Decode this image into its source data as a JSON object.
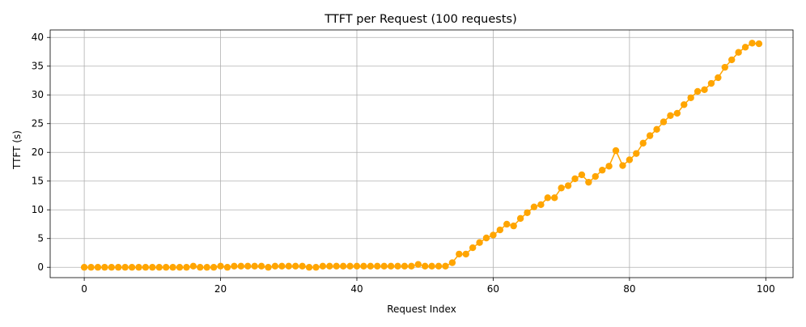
{
  "chart_data": {
    "type": "line",
    "title": "TTFT per Request (100 requests)",
    "xlabel": "Request Index",
    "ylabel": "TTFT (s)",
    "xlim": [
      -5,
      104
    ],
    "ylim": [
      -1.8,
      41.3
    ],
    "xticks": [
      0,
      20,
      40,
      60,
      80,
      100
    ],
    "yticks": [
      0,
      5,
      10,
      15,
      20,
      25,
      30,
      35,
      40
    ],
    "grid": true,
    "marker": "circle",
    "color": "#FFA500",
    "series": [
      {
        "x": [
          0,
          1,
          2,
          3,
          4,
          5,
          6,
          7,
          8,
          9,
          10,
          11,
          12,
          13,
          14,
          15,
          16,
          17,
          18,
          19,
          20,
          21,
          22,
          23,
          24,
          25,
          26,
          27,
          28,
          29,
          30,
          31,
          32,
          33,
          34,
          35,
          36,
          37,
          38,
          39,
          40,
          41,
          42,
          43,
          44,
          45,
          46,
          47,
          48,
          49,
          50,
          51,
          52,
          53,
          54,
          55,
          56,
          57,
          58,
          59,
          60,
          61,
          62,
          63,
          64,
          65,
          66,
          67,
          68,
          69,
          70,
          71,
          72,
          73,
          74,
          75,
          76,
          77,
          78,
          79,
          80,
          81,
          82,
          83,
          84,
          85,
          86,
          87,
          88,
          89,
          90,
          91,
          92,
          93,
          94,
          95,
          96,
          97,
          98,
          99
        ],
        "values": [
          0.0,
          0.0,
          0.0,
          0.0,
          0.0,
          0.0,
          0.0,
          0.0,
          0.0,
          0.0,
          0.0,
          0.0,
          0.0,
          0.0,
          0.0,
          0.0,
          0.2,
          0.0,
          0.0,
          0.0,
          0.2,
          0.0,
          0.2,
          0.2,
          0.2,
          0.2,
          0.2,
          0.0,
          0.2,
          0.2,
          0.2,
          0.2,
          0.2,
          0.0,
          0.0,
          0.2,
          0.2,
          0.2,
          0.2,
          0.2,
          0.2,
          0.2,
          0.2,
          0.2,
          0.2,
          0.2,
          0.2,
          0.2,
          0.2,
          0.5,
          0.2,
          0.2,
          0.2,
          0.2,
          0.8,
          2.3,
          2.3,
          3.4,
          4.3,
          5.1,
          5.6,
          6.5,
          7.5,
          7.2,
          8.5,
          9.5,
          10.5,
          10.9,
          12.1,
          12.1,
          13.8,
          14.2,
          15.4,
          16.1,
          14.8,
          15.8,
          16.9,
          17.6,
          20.3,
          17.7,
          18.7,
          19.8,
          21.6,
          22.9,
          24.0,
          25.3,
          26.4,
          26.8,
          28.3,
          29.5,
          30.6,
          30.9,
          32.0,
          33.0,
          34.8,
          36.1,
          37.4,
          38.3,
          39.0,
          38.9
        ]
      }
    ]
  }
}
